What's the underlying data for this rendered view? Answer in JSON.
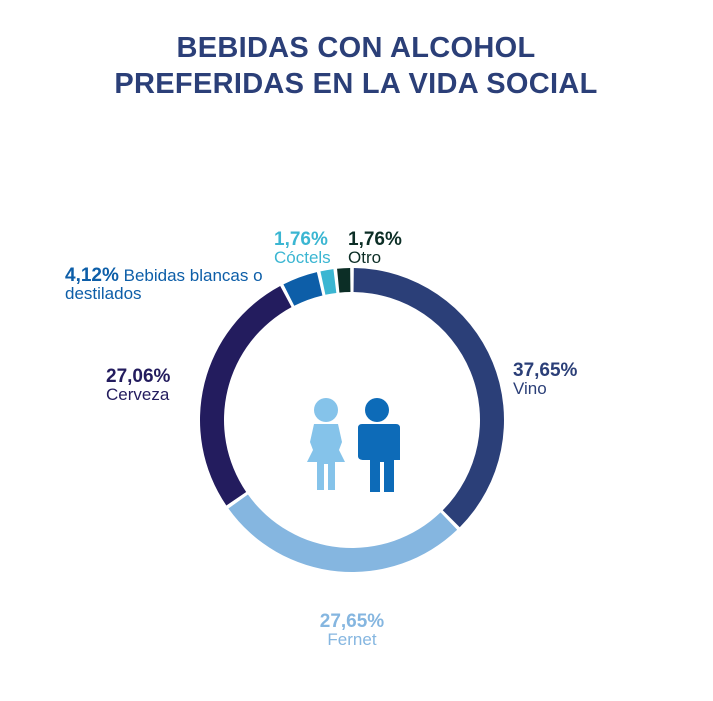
{
  "chart_data": {
    "type": "pie",
    "title": "BEBIDAS CON ALCOHOL PREFERIDAS EN LA VIDA SOCIAL",
    "categories": [
      "Vino",
      "Fernet",
      "Cerveza",
      "Bebidas blancas o destilados",
      "Cóctels",
      "Otro"
    ],
    "values": [
      37.65,
      27.65,
      27.06,
      4.12,
      1.76,
      1.76
    ],
    "value_labels": [
      "37,65%",
      "27,65%",
      "27,06%",
      "4,12%",
      "1,76%",
      "1,76%"
    ],
    "colors": [
      "#2b3f78",
      "#85b6e0",
      "#231c5e",
      "#0d5ea8",
      "#3bb6d2",
      "#0c2e26"
    ]
  }
}
